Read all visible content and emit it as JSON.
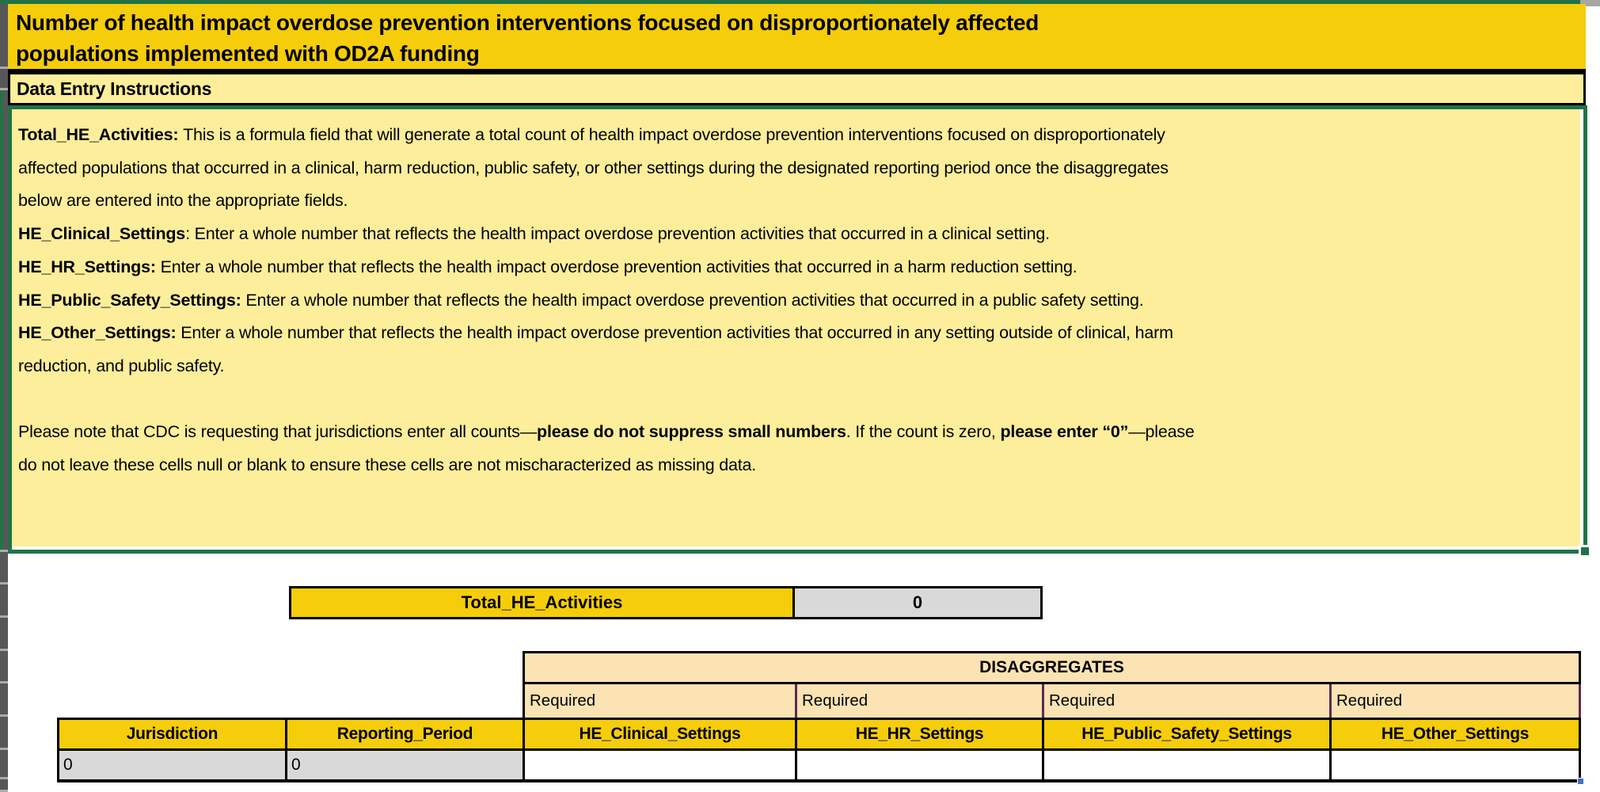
{
  "title": {
    "lines": [
      "Number of health impact overdose prevention interventions focused on disproportionately affected",
      "populations implemented with OD2A funding"
    ]
  },
  "instructions": {
    "header": "Data Entry Instructions",
    "lines": [
      [
        {
          "t": "Total_HE_Activities: ",
          "b": true
        },
        {
          "t": "This is a formula field that will generate a total count of health impact overdose prevention interventions focused on disproportionately",
          "b": false
        }
      ],
      [
        {
          "t": "affected populations that occurred in a clinical, harm reduction, public safety, or other settings during the designated reporting period once the disaggregates",
          "b": false
        }
      ],
      [
        {
          "t": "below are entered into the appropriate fields.",
          "b": false
        }
      ],
      [
        {
          "t": "HE_Clinical_Settings",
          "b": true
        },
        {
          "t": ": Enter a whole number that reflects the health impact overdose prevention activities that occurred in a clinical setting.",
          "b": false
        }
      ],
      [
        {
          "t": "HE_HR_Settings:",
          "b": true
        },
        {
          "t": " Enter a whole number that reflects the health impact overdose prevention activities that occurred in a harm reduction setting.",
          "b": false
        }
      ],
      [
        {
          "t": "HE_Public_Safety_Settings:",
          "b": true
        },
        {
          "t": " Enter a whole number that reflects the health impact overdose prevention activities that occurred in a public safety setting.",
          "b": false
        }
      ],
      [
        {
          "t": "HE_Other_Settings:",
          "b": true
        },
        {
          "t": " Enter a whole number that reflects the health impact overdose prevention activities that occurred in any setting outside of clinical, harm",
          "b": false
        }
      ],
      [
        {
          "t": "reduction, and public safety.",
          "b": false
        }
      ],
      [],
      [
        {
          "t": "Please note that CDC is requesting that jurisdictions enter all counts—",
          "b": false
        },
        {
          "t": "please do not suppress small numbers",
          "b": true
        },
        {
          "t": ". If the count is zero, ",
          "b": false
        },
        {
          "t": "please enter “0”",
          "b": true
        },
        {
          "t": "—please",
          "b": false
        }
      ],
      [
        {
          "t": "do not leave these cells null or blank to ensure these cells are not mischaracterized as missing data.",
          "b": false
        }
      ]
    ]
  },
  "total": {
    "label": "Total_HE_Activities",
    "value": "0"
  },
  "disaggregates": {
    "title": "DISAGGREGATES",
    "required": "Required"
  },
  "table": {
    "headers": [
      "Jurisdiction",
      "Reporting_Period",
      "HE_Clinical_Settings",
      "HE_HR_Settings",
      "HE_Public_Safety_Settings",
      "HE_Other_Settings"
    ],
    "row": [
      "0",
      "0",
      "",
      "",
      "",
      ""
    ]
  },
  "colors": {
    "gold": "#F5CD0A",
    "pale_yellow": "#FDEE9B",
    "cream": "#FBE3B3",
    "excel_green": "#217346",
    "gray_cell": "#D9D9D9",
    "plum_border": "#5F2A52",
    "fill_handle_blue": "#4472C4"
  }
}
